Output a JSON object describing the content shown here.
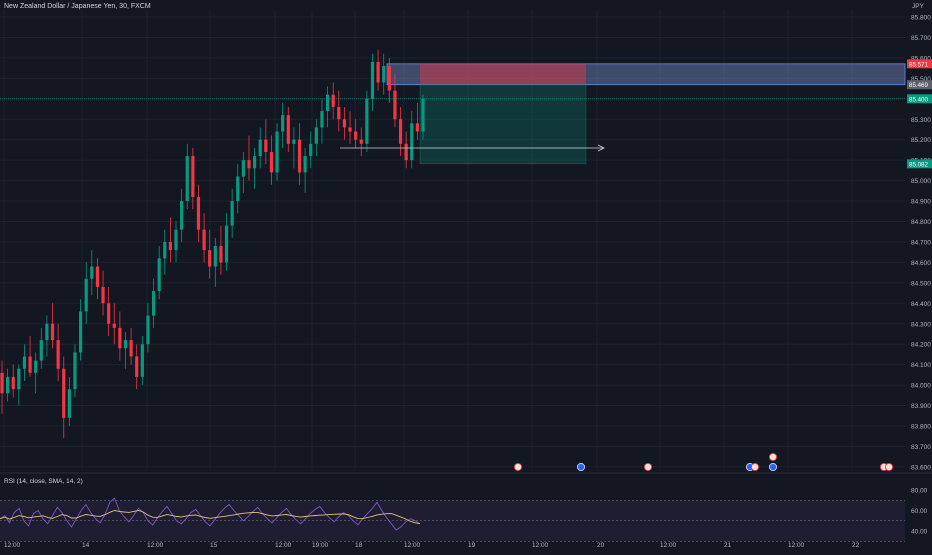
{
  "header": {
    "symbol_title": "New Zealand Dollar / Japanese Yen, 30, FXCM",
    "currency": "JPY"
  },
  "rsi": {
    "label": "RSI (14, close, SMA, 14, 2)",
    "ticks": [
      "80.00",
      "60.00",
      "40.00"
    ],
    "values": [
      52,
      55,
      48,
      58,
      62,
      50,
      45,
      57,
      60,
      52,
      47,
      55,
      63,
      58,
      50,
      44,
      52,
      60,
      66,
      58,
      52,
      48,
      56,
      68,
      72,
      60,
      54,
      49,
      55,
      62,
      58,
      50,
      46,
      53,
      59,
      64,
      57,
      50,
      47,
      52,
      58,
      61,
      55,
      49,
      45,
      51,
      57,
      62,
      66,
      60,
      55,
      50,
      54,
      59,
      63,
      57,
      52,
      48,
      53,
      58,
      62,
      56,
      51,
      47,
      52,
      57,
      61,
      64,
      58,
      53,
      49,
      54,
      58,
      55,
      50,
      46,
      52,
      57,
      62,
      68,
      60,
      53,
      47,
      41,
      44,
      49,
      52,
      50,
      47
    ],
    "line_color": "#7e57c2",
    "sma_color": "#e0c27a"
  },
  "chart_data": {
    "type": "candlestick",
    "symbol": "New Zealand Dollar / Japanese Yen",
    "interval": "30",
    "source": "FXCM",
    "y_ticks": [
      "85.800",
      "85.700",
      "85.600",
      "85.500",
      "85.400",
      "85.300",
      "85.200",
      "85.100",
      "85.000",
      "84.900",
      "84.800",
      "84.700",
      "84.600",
      "84.500",
      "84.400",
      "84.300",
      "84.200",
      "84.100",
      "84.000",
      "83.900",
      "83.800",
      "83.700",
      "83.600"
    ],
    "x_ticks": [
      "12:00",
      "14",
      "12:00",
      "15",
      "12:00",
      "19:00",
      "18",
      "12:00",
      "19",
      "12:00",
      "20",
      "12:00",
      "21",
      "12:00",
      "22"
    ],
    "ylim": [
      83.58,
      85.84
    ],
    "price_labels": [
      {
        "text": "85.571",
        "value": 85.571,
        "color": "#f23645"
      },
      {
        "text": "85.469",
        "value": 85.469,
        "color": "#5d606b"
      },
      {
        "text": "85.400",
        "value": 85.4,
        "color": "#089981"
      },
      {
        "text": "85.082",
        "value": 85.082,
        "color": "#089981"
      }
    ],
    "position": {
      "entry": 85.469,
      "stop": 85.571,
      "target": 85.082,
      "top_band": 85.571,
      "band_bottom": 85.469
    },
    "candles": [
      {
        "o": 84.06,
        "h": 84.12,
        "l": 83.86,
        "c": 83.96
      },
      {
        "o": 83.96,
        "h": 84.08,
        "l": 83.92,
        "c": 84.04
      },
      {
        "o": 84.04,
        "h": 84.1,
        "l": 83.94,
        "c": 83.98
      },
      {
        "o": 83.98,
        "h": 84.1,
        "l": 83.9,
        "c": 84.08
      },
      {
        "o": 84.08,
        "h": 84.2,
        "l": 84.02,
        "c": 84.14
      },
      {
        "o": 84.14,
        "h": 84.24,
        "l": 84.04,
        "c": 84.06
      },
      {
        "o": 84.06,
        "h": 84.16,
        "l": 83.96,
        "c": 84.12
      },
      {
        "o": 84.12,
        "h": 84.28,
        "l": 84.08,
        "c": 84.22
      },
      {
        "o": 84.22,
        "h": 84.34,
        "l": 84.14,
        "c": 84.3
      },
      {
        "o": 84.3,
        "h": 84.4,
        "l": 84.18,
        "c": 84.22
      },
      {
        "o": 84.22,
        "h": 84.3,
        "l": 84.02,
        "c": 84.08
      },
      {
        "o": 84.08,
        "h": 84.14,
        "l": 83.74,
        "c": 83.84
      },
      {
        "o": 83.84,
        "h": 84.04,
        "l": 83.8,
        "c": 83.98
      },
      {
        "o": 83.98,
        "h": 84.2,
        "l": 83.94,
        "c": 84.16
      },
      {
        "o": 84.16,
        "h": 84.42,
        "l": 84.12,
        "c": 84.36
      },
      {
        "o": 84.36,
        "h": 84.6,
        "l": 84.3,
        "c": 84.52
      },
      {
        "o": 84.52,
        "h": 84.66,
        "l": 84.44,
        "c": 84.58
      },
      {
        "o": 84.58,
        "h": 84.62,
        "l": 84.42,
        "c": 84.48
      },
      {
        "o": 84.48,
        "h": 84.56,
        "l": 84.34,
        "c": 84.4
      },
      {
        "o": 84.4,
        "h": 84.48,
        "l": 84.24,
        "c": 84.3
      },
      {
        "o": 84.3,
        "h": 84.4,
        "l": 84.2,
        "c": 84.28
      },
      {
        "o": 84.28,
        "h": 84.36,
        "l": 84.12,
        "c": 84.18
      },
      {
        "o": 84.18,
        "h": 84.26,
        "l": 84.08,
        "c": 84.22
      },
      {
        "o": 84.22,
        "h": 84.28,
        "l": 84.1,
        "c": 84.14
      },
      {
        "o": 84.14,
        "h": 84.2,
        "l": 83.98,
        "c": 84.04
      },
      {
        "o": 84.04,
        "h": 84.24,
        "l": 84.0,
        "c": 84.2
      },
      {
        "o": 84.2,
        "h": 84.4,
        "l": 84.16,
        "c": 84.34
      },
      {
        "o": 84.34,
        "h": 84.52,
        "l": 84.28,
        "c": 84.46
      },
      {
        "o": 84.46,
        "h": 84.68,
        "l": 84.42,
        "c": 84.62
      },
      {
        "o": 84.62,
        "h": 84.76,
        "l": 84.54,
        "c": 84.7
      },
      {
        "o": 84.7,
        "h": 84.82,
        "l": 84.6,
        "c": 84.66
      },
      {
        "o": 84.66,
        "h": 84.8,
        "l": 84.6,
        "c": 84.76
      },
      {
        "o": 84.76,
        "h": 84.96,
        "l": 84.7,
        "c": 84.9
      },
      {
        "o": 84.9,
        "h": 85.18,
        "l": 84.86,
        "c": 85.12
      },
      {
        "o": 85.12,
        "h": 85.16,
        "l": 84.86,
        "c": 84.92
      },
      {
        "o": 84.92,
        "h": 84.98,
        "l": 84.7,
        "c": 84.76
      },
      {
        "o": 84.76,
        "h": 84.84,
        "l": 84.6,
        "c": 84.66
      },
      {
        "o": 84.66,
        "h": 84.76,
        "l": 84.52,
        "c": 84.58
      },
      {
        "o": 84.58,
        "h": 84.72,
        "l": 84.48,
        "c": 84.68
      },
      {
        "o": 84.68,
        "h": 84.78,
        "l": 84.54,
        "c": 84.6
      },
      {
        "o": 84.6,
        "h": 84.84,
        "l": 84.56,
        "c": 84.78
      },
      {
        "o": 84.78,
        "h": 84.96,
        "l": 84.72,
        "c": 84.9
      },
      {
        "o": 84.9,
        "h": 85.08,
        "l": 84.84,
        "c": 85.02
      },
      {
        "o": 85.02,
        "h": 85.14,
        "l": 84.94,
        "c": 85.1
      },
      {
        "o": 85.1,
        "h": 85.22,
        "l": 85.0,
        "c": 85.06
      },
      {
        "o": 85.06,
        "h": 85.16,
        "l": 84.96,
        "c": 85.12
      },
      {
        "o": 85.12,
        "h": 85.26,
        "l": 85.06,
        "c": 85.2
      },
      {
        "o": 85.2,
        "h": 85.3,
        "l": 85.08,
        "c": 85.14
      },
      {
        "o": 85.14,
        "h": 85.22,
        "l": 84.98,
        "c": 85.04
      },
      {
        "o": 85.04,
        "h": 85.28,
        "l": 85.0,
        "c": 85.24
      },
      {
        "o": 85.24,
        "h": 85.38,
        "l": 85.16,
        "c": 85.32
      },
      {
        "o": 85.32,
        "h": 85.36,
        "l": 85.14,
        "c": 85.18
      },
      {
        "o": 85.18,
        "h": 85.26,
        "l": 85.06,
        "c": 85.2
      },
      {
        "o": 85.2,
        "h": 85.28,
        "l": 84.98,
        "c": 85.04
      },
      {
        "o": 85.04,
        "h": 85.16,
        "l": 84.94,
        "c": 85.12
      },
      {
        "o": 85.12,
        "h": 85.24,
        "l": 85.06,
        "c": 85.18
      },
      {
        "o": 85.18,
        "h": 85.3,
        "l": 85.12,
        "c": 85.26
      },
      {
        "o": 85.26,
        "h": 85.4,
        "l": 85.18,
        "c": 85.34
      },
      {
        "o": 85.34,
        "h": 85.46,
        "l": 85.26,
        "c": 85.42
      },
      {
        "o": 85.42,
        "h": 85.48,
        "l": 85.3,
        "c": 85.36
      },
      {
        "o": 85.36,
        "h": 85.44,
        "l": 85.24,
        "c": 85.3
      },
      {
        "o": 85.3,
        "h": 85.36,
        "l": 85.2,
        "c": 85.26
      },
      {
        "o": 85.26,
        "h": 85.34,
        "l": 85.18,
        "c": 85.24
      },
      {
        "o": 85.24,
        "h": 85.3,
        "l": 85.16,
        "c": 85.2
      },
      {
        "o": 85.2,
        "h": 85.26,
        "l": 85.12,
        "c": 85.18
      },
      {
        "o": 85.18,
        "h": 85.44,
        "l": 85.14,
        "c": 85.4
      },
      {
        "o": 85.4,
        "h": 85.62,
        "l": 85.34,
        "c": 85.58
      },
      {
        "o": 85.58,
        "h": 85.64,
        "l": 85.44,
        "c": 85.48
      },
      {
        "o": 85.48,
        "h": 85.62,
        "l": 85.42,
        "c": 85.56
      },
      {
        "o": 85.56,
        "h": 85.6,
        "l": 85.38,
        "c": 85.44
      },
      {
        "o": 85.44,
        "h": 85.52,
        "l": 85.26,
        "c": 85.3
      },
      {
        "o": 85.3,
        "h": 85.36,
        "l": 85.12,
        "c": 85.18
      },
      {
        "o": 85.18,
        "h": 85.24,
        "l": 85.06,
        "c": 85.1
      },
      {
        "o": 85.1,
        "h": 85.34,
        "l": 85.06,
        "c": 85.28
      },
      {
        "o": 85.28,
        "h": 85.38,
        "l": 85.2,
        "c": 85.24
      },
      {
        "o": 85.24,
        "h": 85.42,
        "l": 85.2,
        "c": 85.4
      }
    ],
    "event_markers": [
      "event-icon",
      "flag-icon",
      "event-icon",
      "flag-icon",
      "flag-icon",
      "event-icon",
      "event-icon"
    ]
  }
}
